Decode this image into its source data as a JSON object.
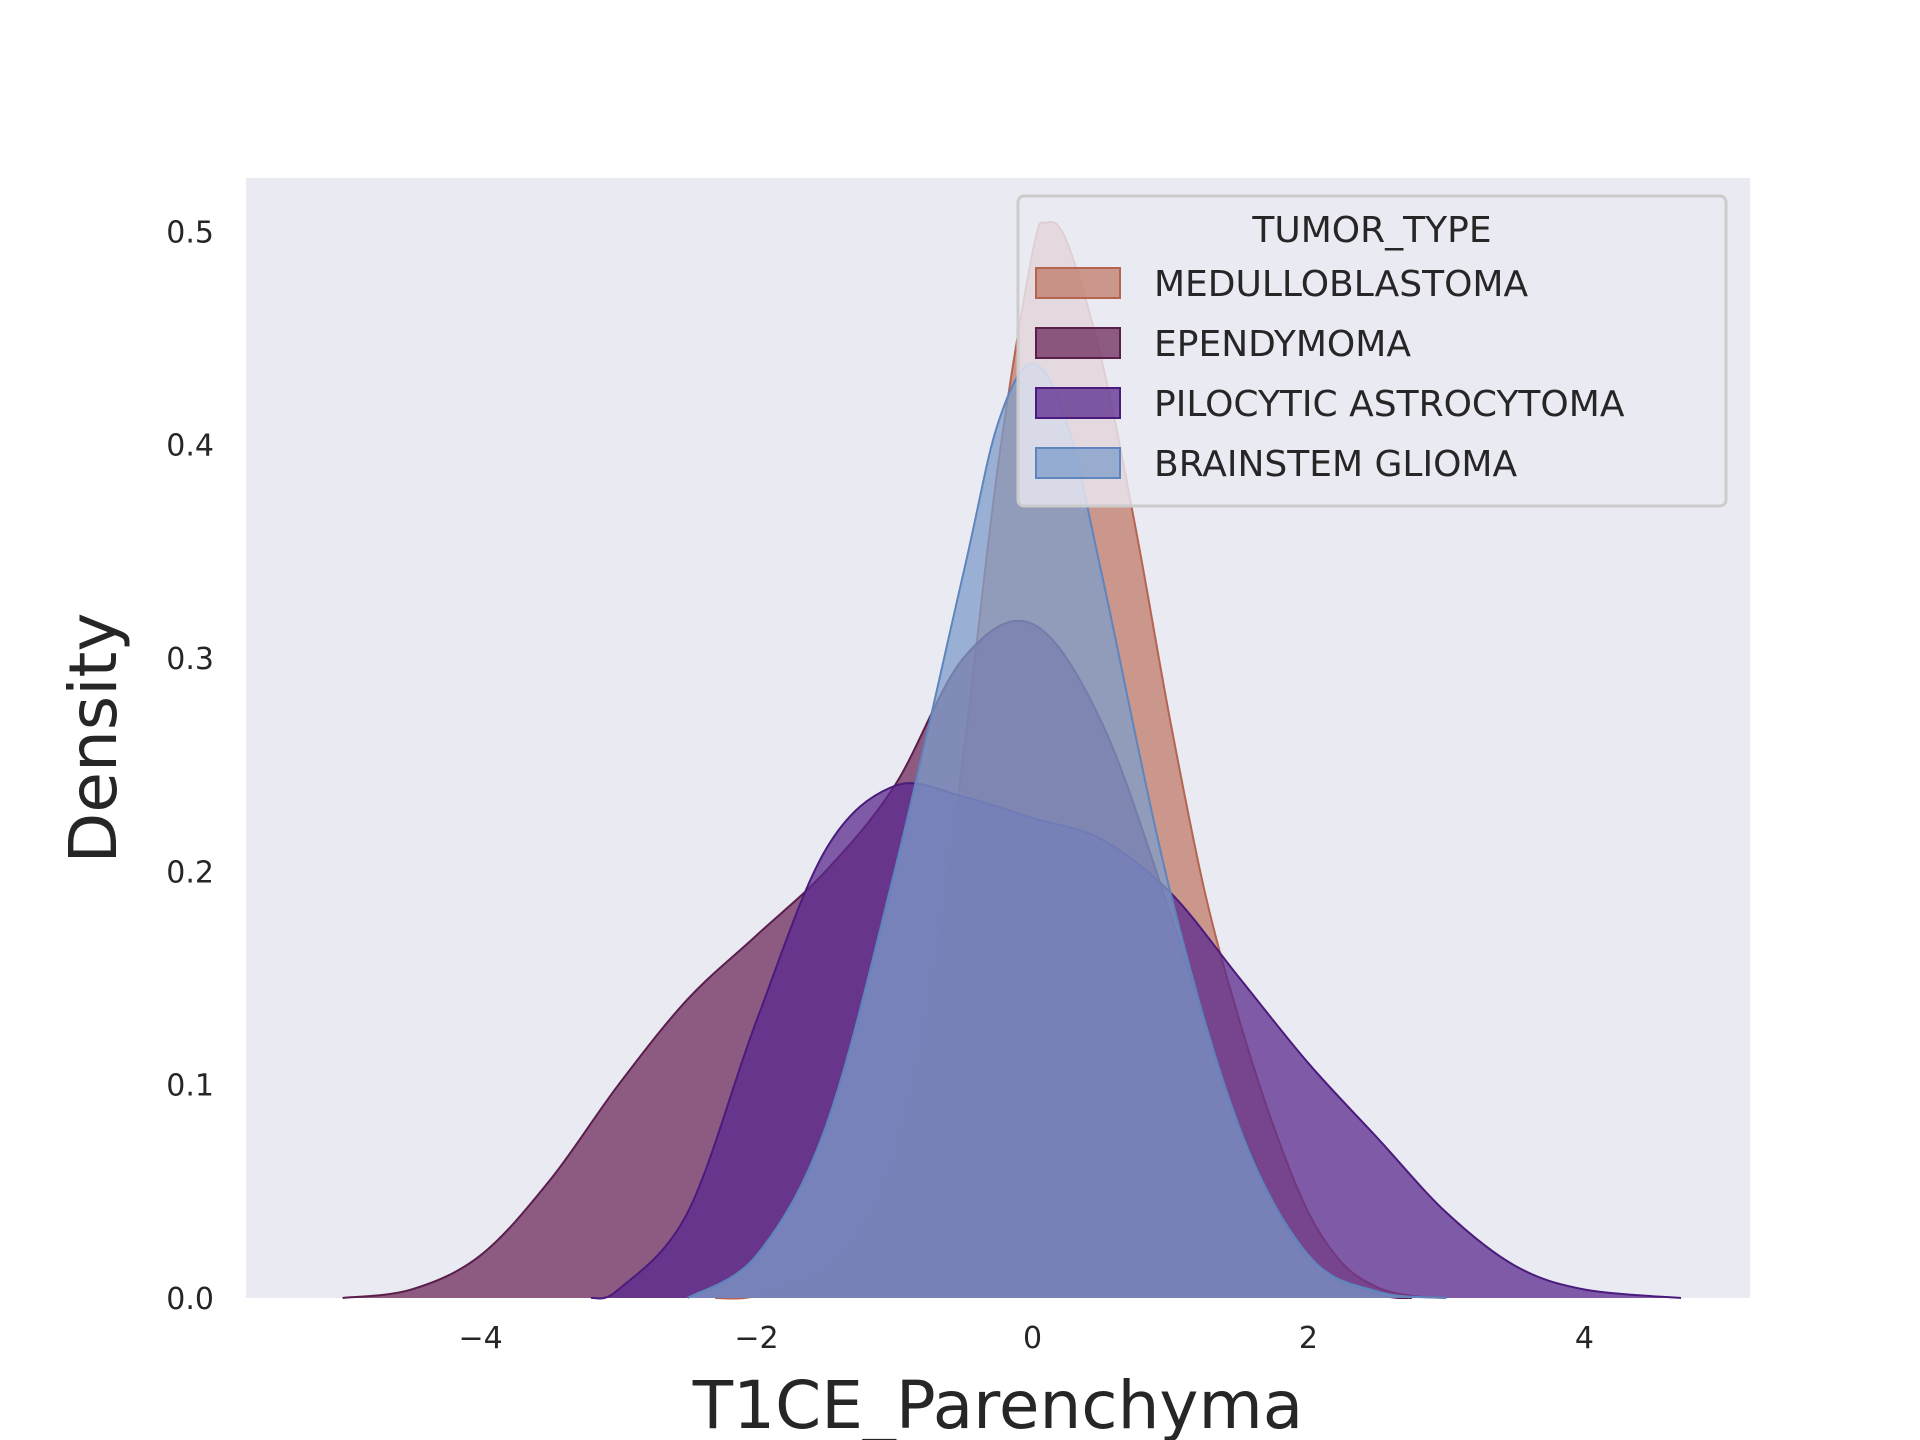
{
  "chart_data": {
    "type": "area",
    "title": "",
    "xlabel": "T1CE_Parenchyma",
    "ylabel": "Density",
    "xlim": [
      -5.7,
      5.2
    ],
    "ylim": [
      0,
      0.525
    ],
    "grid": false,
    "background": "#EAEAF2",
    "xticks": [
      -4,
      -2,
      0,
      2,
      4
    ],
    "xtick_labels": [
      "−4",
      "−2",
      "0",
      "2",
      "4"
    ],
    "yticks": [
      0.0,
      0.1,
      0.2,
      0.3,
      0.4,
      0.5
    ],
    "ytick_labels": [
      "0.0",
      "0.1",
      "0.2",
      "0.3",
      "0.4",
      "0.5"
    ],
    "legend": {
      "title": "TUMOR_TYPE",
      "placement": "upper right"
    },
    "series": [
      {
        "name": "MEDULLOBLASTOMA",
        "fill": "#C07A6A",
        "stroke": "#B56450",
        "fill_opacity": 0.75,
        "x": [
          -2.3,
          -2.0,
          -1.5,
          -1.25,
          -1.0,
          -0.75,
          -0.5,
          -0.25,
          0.0,
          0.1,
          0.25,
          0.5,
          0.75,
          1.0,
          1.25,
          1.5,
          1.75,
          2.0,
          2.25,
          2.5,
          2.75,
          3.0
        ],
        "y": [
          0.0,
          0.001,
          0.013,
          0.03,
          0.065,
          0.135,
          0.255,
          0.39,
          0.49,
          0.504,
          0.495,
          0.44,
          0.36,
          0.27,
          0.19,
          0.13,
          0.08,
          0.04,
          0.016,
          0.005,
          0.001,
          0.0
        ]
      },
      {
        "name": "EPENDYMOMA",
        "fill": "#6E2A5C",
        "stroke": "#5A1E4C",
        "fill_opacity": 0.75,
        "x": [
          -5.0,
          -4.5,
          -4.0,
          -3.5,
          -3.0,
          -2.5,
          -2.0,
          -1.5,
          -1.0,
          -0.5,
          0.0,
          0.5,
          1.0,
          1.5,
          2.0,
          2.5,
          2.75
        ],
        "y": [
          0.0,
          0.004,
          0.02,
          0.055,
          0.1,
          0.14,
          0.17,
          0.2,
          0.24,
          0.3,
          0.316,
          0.27,
          0.18,
          0.08,
          0.018,
          0.002,
          0.0
        ]
      },
      {
        "name": "PILOCYTIC ASTROCYTOMA",
        "fill": "#5B2A8E",
        "stroke": "#4A1B7C",
        "fill_opacity": 0.75,
        "x": [
          -3.2,
          -3.0,
          -2.5,
          -2.0,
          -1.5,
          -1.0,
          -0.5,
          0.0,
          0.5,
          1.0,
          1.5,
          2.0,
          2.5,
          3.0,
          3.5,
          4.0,
          4.7
        ],
        "y": [
          0.0,
          0.004,
          0.04,
          0.13,
          0.21,
          0.24,
          0.235,
          0.225,
          0.215,
          0.19,
          0.15,
          0.11,
          0.075,
          0.04,
          0.015,
          0.004,
          0.0
        ]
      },
      {
        "name": "BRAINSTEM GLIOMA",
        "fill": "#7E9CCA",
        "stroke": "#5E85BD",
        "fill_opacity": 0.75,
        "x": [
          -2.5,
          -2.0,
          -1.5,
          -1.0,
          -0.5,
          -0.25,
          0.0,
          0.25,
          0.5,
          1.0,
          1.5,
          2.0,
          2.5,
          3.0
        ],
        "y": [
          0.0,
          0.02,
          0.08,
          0.2,
          0.34,
          0.41,
          0.438,
          0.41,
          0.34,
          0.19,
          0.08,
          0.02,
          0.003,
          0.0
        ]
      }
    ]
  }
}
